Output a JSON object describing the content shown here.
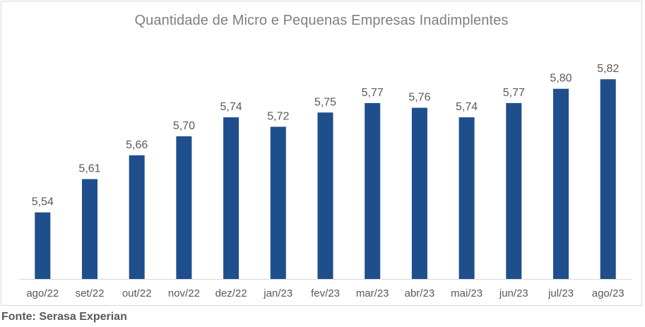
{
  "chart_data": {
    "type": "bar",
    "title": "Quantidade de Micro e Pequenas Empresas Inadimplentes",
    "categories": [
      "ago/22",
      "set/22",
      "out/22",
      "nov/22",
      "dez/22",
      "jan/23",
      "fev/23",
      "mar/23",
      "abr/23",
      "mai/23",
      "jun/23",
      "jul/23",
      "ago/23"
    ],
    "values": [
      5.54,
      5.61,
      5.66,
      5.7,
      5.74,
      5.72,
      5.75,
      5.77,
      5.76,
      5.74,
      5.77,
      5.8,
      5.82
    ],
    "data_labels": [
      "5,54",
      "5,61",
      "5,66",
      "5,70",
      "5,74",
      "5,72",
      "5,75",
      "5,77",
      "5,76",
      "5,74",
      "5,77",
      "5,80",
      "5,82"
    ],
    "xlabel": "",
    "ylabel": "",
    "ylim": [
      5.4,
      5.85
    ],
    "grid": false,
    "legend": "none",
    "bar_color": "#1f4e8c"
  },
  "footer": {
    "source": "Fonte: Serasa Experian"
  }
}
